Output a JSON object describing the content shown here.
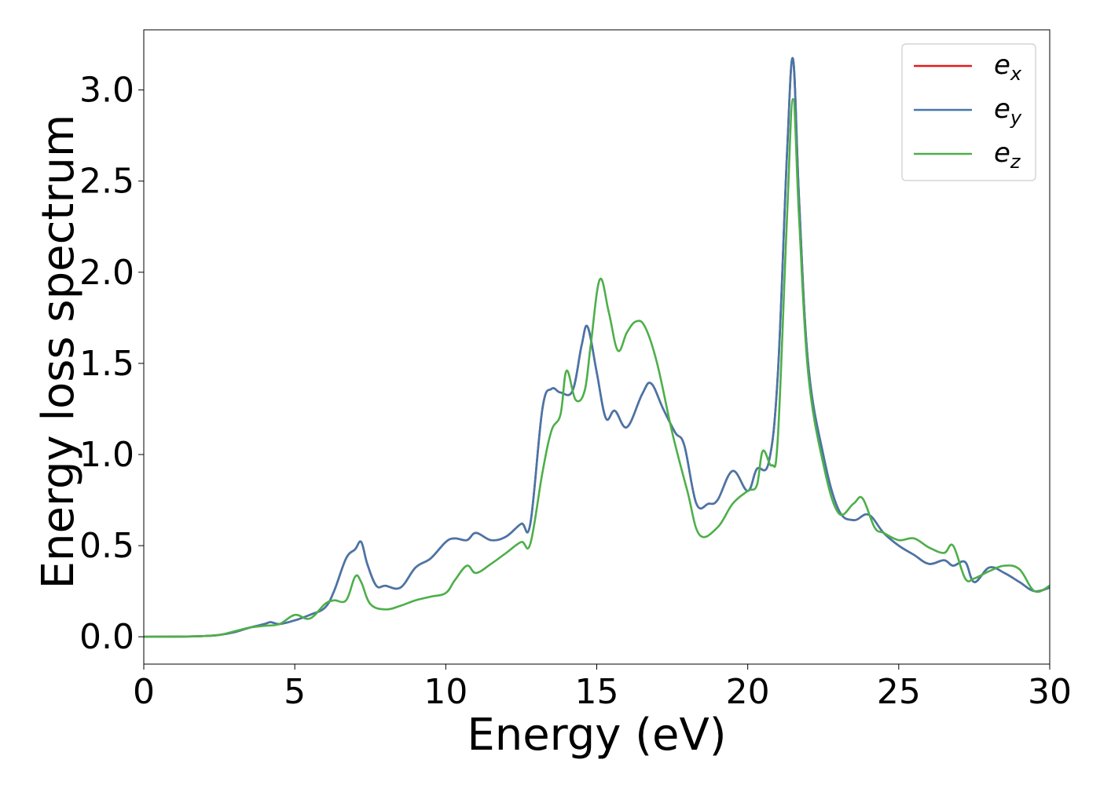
{
  "chart_data": {
    "type": "line",
    "xlabel": "Energy (eV)",
    "ylabel": "Energy loss spectrum",
    "xlim": [
      0,
      30
    ],
    "ylim": [
      -0.15,
      3.33
    ],
    "xticks": [
      0,
      5,
      10,
      15,
      20,
      25,
      30
    ],
    "xtick_labels": [
      "0",
      "5",
      "10",
      "15",
      "20",
      "25",
      "30"
    ],
    "yticks": [
      0.0,
      0.5,
      1.0,
      1.5,
      2.0,
      2.5,
      3.0
    ],
    "ytick_labels": [
      "0.0",
      "0.5",
      "1.0",
      "1.5",
      "2.0",
      "2.5",
      "3.0"
    ],
    "grid": false,
    "legend_position": "top-right",
    "series": [
      {
        "name_main": "e",
        "name_sub": "x",
        "color": "#e41a1c",
        "x": [
          0,
          1,
          2,
          2.5,
          3,
          3.5,
          4,
          4.2,
          4.5,
          5,
          5.5,
          6,
          6.3,
          6.7,
          7.0,
          7.2,
          7.4,
          7.7,
          8.0,
          8.5,
          9.0,
          9.5,
          10.0,
          10.3,
          10.7,
          11.0,
          11.5,
          12.0,
          12.5,
          12.8,
          13.2,
          13.5,
          13.8,
          14.2,
          14.5,
          14.7,
          15.0,
          15.3,
          15.6,
          16.0,
          16.5,
          16.8,
          17.2,
          17.6,
          17.9,
          18.3,
          18.7,
          19.0,
          19.5,
          20.0,
          20.3,
          20.7,
          21.0,
          21.3,
          21.5,
          21.7,
          22.0,
          22.5,
          23.0,
          23.5,
          24.0,
          24.5,
          25.0,
          25.5,
          26.0,
          26.5,
          26.8,
          27.2,
          27.5,
          28.0,
          28.5,
          29.0,
          29.5,
          30.0
        ],
        "y": [
          0.0,
          0.001,
          0.004,
          0.01,
          0.025,
          0.05,
          0.07,
          0.08,
          0.07,
          0.09,
          0.12,
          0.16,
          0.25,
          0.43,
          0.48,
          0.52,
          0.4,
          0.28,
          0.28,
          0.27,
          0.38,
          0.43,
          0.52,
          0.54,
          0.53,
          0.57,
          0.53,
          0.55,
          0.62,
          0.62,
          1.25,
          1.36,
          1.34,
          1.35,
          1.6,
          1.7,
          1.45,
          1.2,
          1.24,
          1.15,
          1.33,
          1.39,
          1.25,
          1.12,
          1.05,
          0.73,
          0.73,
          0.75,
          0.91,
          0.8,
          0.92,
          0.96,
          1.45,
          2.65,
          3.17,
          2.4,
          1.5,
          1.0,
          0.7,
          0.64,
          0.67,
          0.57,
          0.5,
          0.45,
          0.4,
          0.42,
          0.39,
          0.41,
          0.3,
          0.38,
          0.35,
          0.3,
          0.25,
          0.27
        ]
      },
      {
        "name_main": "e",
        "name_sub": "y",
        "color": "#4477aa",
        "x": [
          0,
          1,
          2,
          2.5,
          3,
          3.5,
          4,
          4.2,
          4.5,
          5,
          5.5,
          6,
          6.3,
          6.7,
          7.0,
          7.2,
          7.4,
          7.7,
          8.0,
          8.5,
          9.0,
          9.5,
          10.0,
          10.3,
          10.7,
          11.0,
          11.5,
          12.0,
          12.5,
          12.8,
          13.2,
          13.5,
          13.8,
          14.2,
          14.5,
          14.7,
          15.0,
          15.3,
          15.6,
          16.0,
          16.5,
          16.8,
          17.2,
          17.6,
          17.9,
          18.3,
          18.7,
          19.0,
          19.5,
          20.0,
          20.3,
          20.7,
          21.0,
          21.3,
          21.5,
          21.7,
          22.0,
          22.5,
          23.0,
          23.5,
          24.0,
          24.5,
          25.0,
          25.5,
          26.0,
          26.5,
          26.8,
          27.2,
          27.5,
          28.0,
          28.5,
          29.0,
          29.5,
          30.0
        ],
        "y": [
          0.0,
          0.001,
          0.004,
          0.01,
          0.025,
          0.05,
          0.07,
          0.08,
          0.07,
          0.09,
          0.12,
          0.16,
          0.25,
          0.43,
          0.48,
          0.52,
          0.4,
          0.28,
          0.28,
          0.27,
          0.38,
          0.43,
          0.52,
          0.54,
          0.53,
          0.57,
          0.53,
          0.55,
          0.62,
          0.62,
          1.25,
          1.36,
          1.34,
          1.35,
          1.6,
          1.7,
          1.45,
          1.2,
          1.24,
          1.15,
          1.33,
          1.39,
          1.25,
          1.12,
          1.05,
          0.73,
          0.73,
          0.75,
          0.91,
          0.8,
          0.92,
          0.96,
          1.45,
          2.65,
          3.17,
          2.4,
          1.5,
          1.0,
          0.7,
          0.64,
          0.67,
          0.57,
          0.5,
          0.45,
          0.4,
          0.42,
          0.39,
          0.41,
          0.3,
          0.38,
          0.35,
          0.3,
          0.25,
          0.27
        ]
      },
      {
        "name_main": "e",
        "name_sub": "z",
        "color": "#4daf4a",
        "x": [
          0,
          1,
          2,
          2.5,
          3,
          3.5,
          4,
          4.5,
          5,
          5.5,
          6,
          6.3,
          6.7,
          7.0,
          7.2,
          7.5,
          8.0,
          8.5,
          9.0,
          9.5,
          10.0,
          10.3,
          10.7,
          11.0,
          11.5,
          12.0,
          12.5,
          12.8,
          13.2,
          13.5,
          13.8,
          14.0,
          14.3,
          14.6,
          14.8,
          15.1,
          15.4,
          15.7,
          16.0,
          16.3,
          16.6,
          17.0,
          17.5,
          18.0,
          18.4,
          19.0,
          19.5,
          20.0,
          20.3,
          20.5,
          20.8,
          21.0,
          21.3,
          21.5,
          21.7,
          22.0,
          22.5,
          23.0,
          23.5,
          23.8,
          24.2,
          24.5,
          25.0,
          25.5,
          26.0,
          26.5,
          26.8,
          27.2,
          27.5,
          28.0,
          28.5,
          29.0,
          29.5,
          30.0
        ],
        "y": [
          0.0,
          0.001,
          0.004,
          0.01,
          0.03,
          0.05,
          0.06,
          0.07,
          0.12,
          0.1,
          0.18,
          0.2,
          0.2,
          0.33,
          0.3,
          0.18,
          0.15,
          0.17,
          0.2,
          0.22,
          0.24,
          0.31,
          0.39,
          0.35,
          0.4,
          0.46,
          0.52,
          0.51,
          0.9,
          1.13,
          1.22,
          1.46,
          1.3,
          1.35,
          1.6,
          1.96,
          1.78,
          1.57,
          1.67,
          1.73,
          1.7,
          1.5,
          1.12,
          0.8,
          0.56,
          0.6,
          0.73,
          0.8,
          0.83,
          1.02,
          0.94,
          1.1,
          2.3,
          2.95,
          2.3,
          1.45,
          0.95,
          0.68,
          0.73,
          0.76,
          0.6,
          0.57,
          0.53,
          0.54,
          0.49,
          0.46,
          0.5,
          0.32,
          0.32,
          0.36,
          0.39,
          0.37,
          0.25,
          0.28
        ]
      }
    ]
  }
}
